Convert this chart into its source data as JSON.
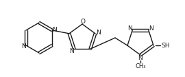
{
  "bg_color": "#ffffff",
  "line_color": "#1a1a1a",
  "text_color": "#1a1a1a",
  "line_width": 1.0,
  "font_size": 6.5,
  "figsize": [
    2.7,
    1.13
  ],
  "dpi": 100,
  "xlim": [
    0,
    270
  ],
  "ylim": [
    0,
    113
  ]
}
